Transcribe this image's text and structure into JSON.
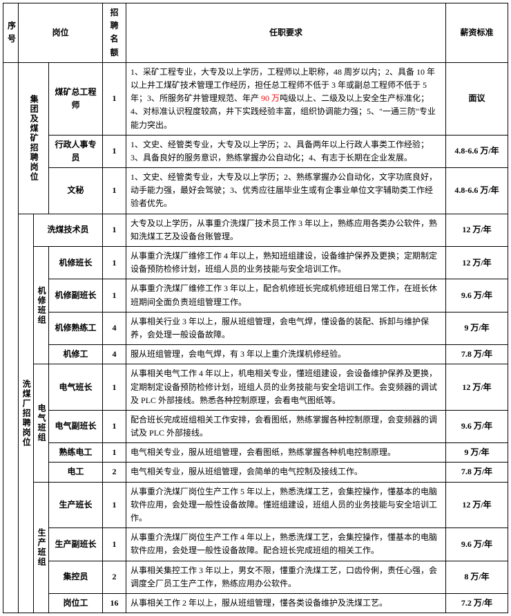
{
  "headers": {
    "seq": "序号",
    "position": "岗位",
    "count": "招聘名额",
    "requirement": "任职要求",
    "salary": "薪资标准"
  },
  "category1": {
    "label": "集团及煤矿招聘岗位",
    "rows": [
      {
        "position": "煤矿总工程师",
        "count": "1",
        "req_pre": "1、采矿工程专业，大专及以上学历，工程师以上职称，48 周岁以内；2、具备 10 年以上井工煤矿技术管理工作经历，担任总工程师不低于 3 年或副总工程师不低于 5 年；3、所服务矿井管理规范、年产 ",
        "req_red": "90 万",
        "req_post": "吨级以上、二级及以上安全生产标准化；4、对标准认识程度较高，井下实践经验丰富，组织协调能力强；5、\"一通三防\"专业能力突出。",
        "salary": "面议"
      },
      {
        "position": "行政人事专员",
        "count": "1",
        "req": "1、文史、经管类专业，大专及以上学历；2、具备两年以上行政人事类工作经验；3、具备良好的服务意识，熟练掌握办公自动化；4、有志于长期在企业发展。",
        "salary": "4.8-6.6 万/年"
      },
      {
        "position": "文秘",
        "count": "1",
        "req": "1、文史、经管类专业，大专及以上学历；2、熟练掌握办公自动化，文字功底良好，动手能力强，最好会驾驶；3、优秀应往届毕业生或有企事业单位文字辅助类工作经验者优先。",
        "salary": "4.8-6.6 万/年"
      }
    ]
  },
  "category2": {
    "label": "洗煤厂招聘岗位",
    "row0": {
      "position": "洗煤技术员",
      "count": "1",
      "req": "大专及以上学历，从事重介洗煤厂技术员工作 3 年以上，熟练应用各类办公软件，熟知洗煤工艺及设备台账管理。",
      "salary": "12 万/年"
    },
    "group_jx": {
      "label": "机修班组",
      "rows": [
        {
          "position": "机修班长",
          "count": "1",
          "req": "从事重介洗煤厂维修工作 4 年以上，熟知班组建设，设备维护保养及更换；定期制定设备预防检修计划，班组人员的业务技能与安全培训工作。",
          "salary": "12 万/年"
        },
        {
          "position": "机修副班长",
          "count": "1",
          "req": "从事重介洗煤厂维修工作 3 年以上，配合机修班长完成机修班组日常工作，在班长休班期间全面负责班组管理工作。",
          "salary": "9.6 万/年"
        },
        {
          "position": "机修熟练工",
          "count": "4",
          "req": "从事相关行业 3 年以上，服从班组管理，会电气焊，懂设备的装配、拆卸与维护保养，会处理一般设备故障。",
          "salary": "9 万/年"
        },
        {
          "position": "机修工",
          "count": "4",
          "req": "服从班组管理，会电气焊，有 3 年以上重介洗煤机修经验。",
          "salary": "7.8 万/年"
        }
      ]
    },
    "group_dq": {
      "label": "电气班组",
      "rows": [
        {
          "position": "电气班长",
          "count": "1",
          "req": "从事相关电气工作 4 年以上，机电相关专业，懂班组建设，会设备维护保养及更换，定期制定设备预防检修计划，班组人员的业务技能与安全培训工作。会变频器的调试及 PLC 外部接线。熟悉各种控制原理，会看电气图纸等。",
          "salary": "12 万/年"
        },
        {
          "position": "电气副班长",
          "count": "1",
          "req": "配合班长完成班组相关工作安排，会看图纸，熟练掌握各种控制原理，会变频器的调试及 PLC 外部接线。",
          "salary": "9.6 万/年"
        },
        {
          "position": "熟练电工",
          "count": "1",
          "req": "电气相关专业，服从班组管理，会看图纸，熟练掌握各种机电控制原理。",
          "salary": "9 万/年"
        },
        {
          "position": "电工",
          "count": "2",
          "req": "电气相关专业，服从班组管理，会简单的电气控制及接线工作。",
          "salary": "7.8 万/年"
        }
      ]
    },
    "group_sc": {
      "label": "生产班组",
      "rows": [
        {
          "position": "生产班长",
          "count": "1",
          "req": "从事重介洗煤厂岗位生产工作 5 年以上，熟悉洗煤工艺，会集控操作，懂基本的电脑软件应用，会处理一般性设备故障。懂班组建设，班组人员的业务技能与安全培训工作。",
          "salary": "12 万/年"
        },
        {
          "position": "生产副班长",
          "count": "1",
          "req": "从事重介洗煤厂岗位生产工作 4 年以上，熟悉洗煤工艺，会集控操作，懂基本的电脑软件应用，会处理一般性设备故障。配合班长完成班组的相关工作。",
          "salary": "9.6 万/年"
        },
        {
          "position": "集控员",
          "count": "2",
          "req": "从事相关集控工作 3 年以上，男女不限，懂重介洗煤工艺，口齿伶俐，责任心强，会调度全厂员工生产工作，熟练应用办公软件。",
          "salary": "8 万/年"
        },
        {
          "position": "岗位工",
          "count": "16",
          "req": "从事相关工作 2 年以上，服从班组管理，懂各类设备维护及洗煤工艺。",
          "salary": "7.2 万/年"
        }
      ]
    }
  }
}
